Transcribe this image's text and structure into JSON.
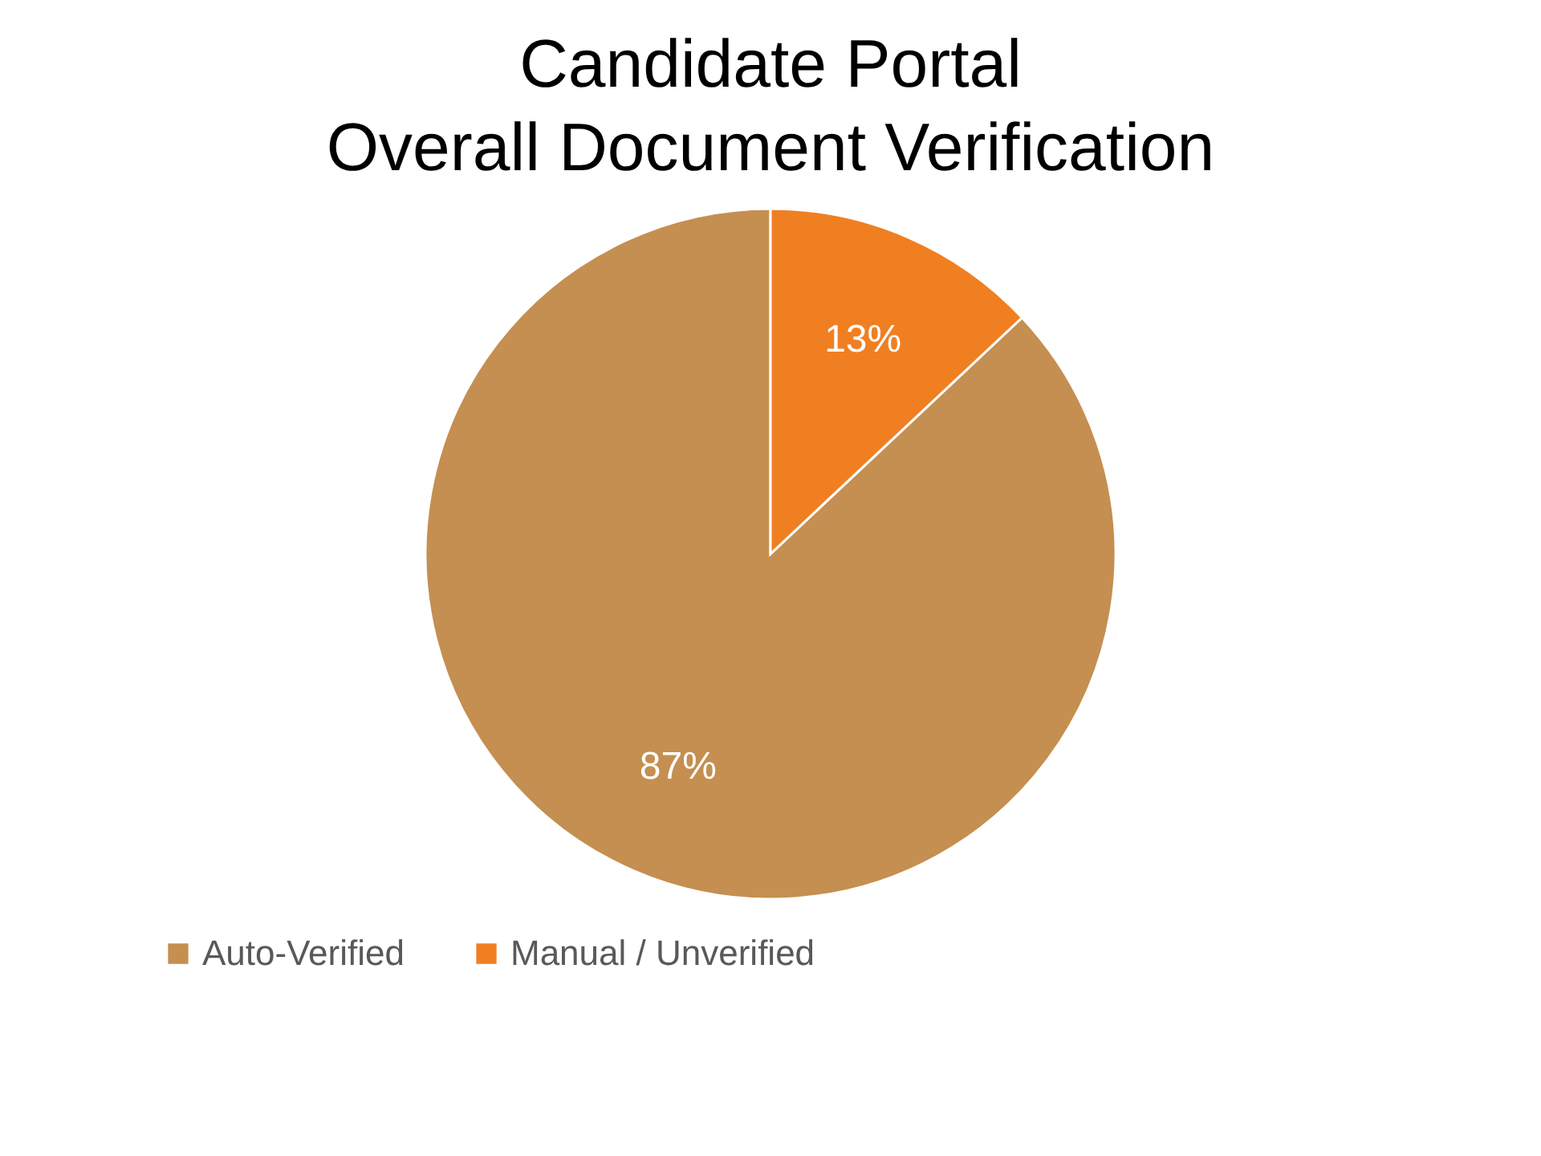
{
  "chart_data": {
    "type": "pie",
    "title": "Candidate Portal\nOverall Document Verification",
    "categories": [
      "Auto-Verified",
      "Manual / Unverified"
    ],
    "values": [
      87,
      13
    ],
    "colors": [
      "#c48f50",
      "#f07f22"
    ],
    "value_labels": [
      "87%",
      "13%"
    ],
    "legend": "bottom"
  }
}
